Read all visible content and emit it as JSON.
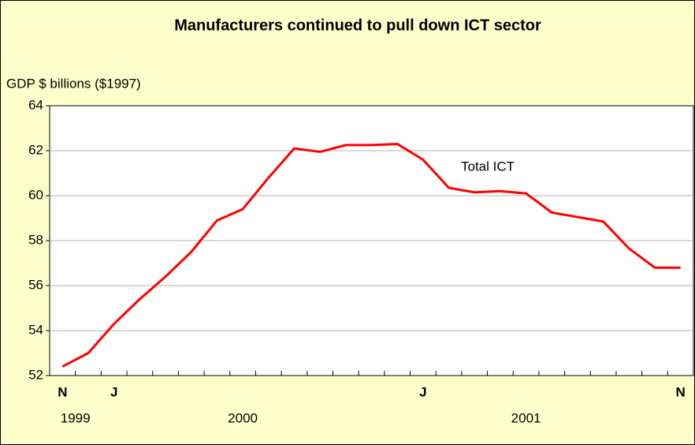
{
  "chart_data": {
    "type": "line",
    "title": "Manufacturers continued to pull down ICT sector",
    "y_label": "GDP $ billions ($1997)",
    "categories": [
      "N",
      null,
      "J",
      null,
      null,
      null,
      null,
      null,
      null,
      null,
      null,
      null,
      null,
      null,
      "J",
      null,
      null,
      null,
      null,
      null,
      null,
      null,
      null,
      null,
      "N"
    ],
    "year_labels": [
      "1999",
      "2000",
      "2001"
    ],
    "series": [
      {
        "name": "Total ICT",
        "color": "#ff0000",
        "values": [
          52.4,
          53.0,
          54.3,
          55.4,
          56.4,
          57.5,
          58.9,
          59.4,
          60.8,
          62.1,
          61.95,
          62.25,
          62.25,
          62.3,
          61.6,
          60.35,
          60.15,
          60.2,
          60.1,
          59.25,
          59.05,
          58.85,
          57.65,
          56.8,
          56.8
        ]
      }
    ],
    "ylim": [
      52,
      64
    ],
    "yticks": [
      52,
      54,
      56,
      58,
      60,
      62,
      64
    ],
    "grid": true
  }
}
